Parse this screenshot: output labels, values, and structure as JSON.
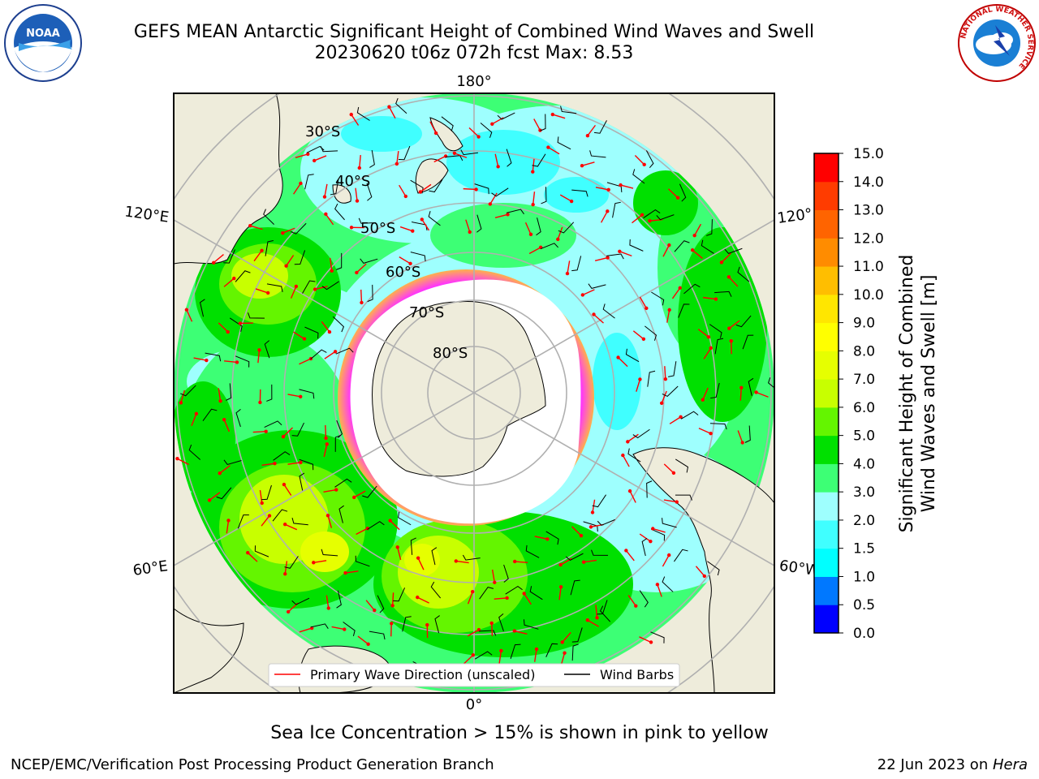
{
  "title": {
    "line1": "GEFS MEAN Antarctic Significant Height of Combined Wind Waves and Swell",
    "line2": "20230620 t06z 072h fcst   Max: 8.53"
  },
  "logos": {
    "left": "NOAA",
    "left_ring": "NATIONAL OCEANIC AND ATMOSPHERIC ADMINISTRATION · U.S. DEPARTMENT OF COMMERCE",
    "right_ring": "NATIONAL WEATHER SERVICE"
  },
  "map": {
    "projection": "south-polar-stereographic",
    "longitude_labels": {
      "top": "180°",
      "bottom": "0°",
      "left_upper": "120°E",
      "left_lower": "60°E",
      "right_upper": "120°",
      "right_lower": "60°W"
    },
    "latitude_labels": [
      "30°S",
      "40°S",
      "50°S",
      "60°S",
      "70°S",
      "80°S"
    ],
    "legend": [
      {
        "label": "Primary Wave Direction (unscaled)",
        "color": "#ff0000"
      },
      {
        "label": "Wind Barbs",
        "color": "#000000"
      }
    ]
  },
  "colorbar": {
    "label_line1": "Significant Height of Combined",
    "label_line2": "Wind Waves and Swell [m]",
    "ticks": [
      "0.0",
      "0.5",
      "1.0",
      "1.5",
      "2.0",
      "3.0",
      "4.0",
      "5.0",
      "6.0",
      "7.0",
      "8.0",
      "9.0",
      "10.0",
      "11.0",
      "12.0",
      "13.0",
      "14.0",
      "15.0"
    ],
    "colors": [
      "#0000ff",
      "#0078ff",
      "#00ffff",
      "#40ffff",
      "#9efffe",
      "#3dff75",
      "#00e000",
      "#64f500",
      "#c8ff00",
      "#e6ff00",
      "#ffff00",
      "#ffe600",
      "#ffbe00",
      "#ff8c00",
      "#ff6400",
      "#ff3c00",
      "#ff0000"
    ]
  },
  "caption": "Sea Ice Concentration > 15% is shown in pink to yellow",
  "footer": {
    "left": "NCEP/EMC/Verification Post Processing Product Generation Branch",
    "right_date": "22 Jun 2023 on ",
    "right_machine": "Hera"
  }
}
